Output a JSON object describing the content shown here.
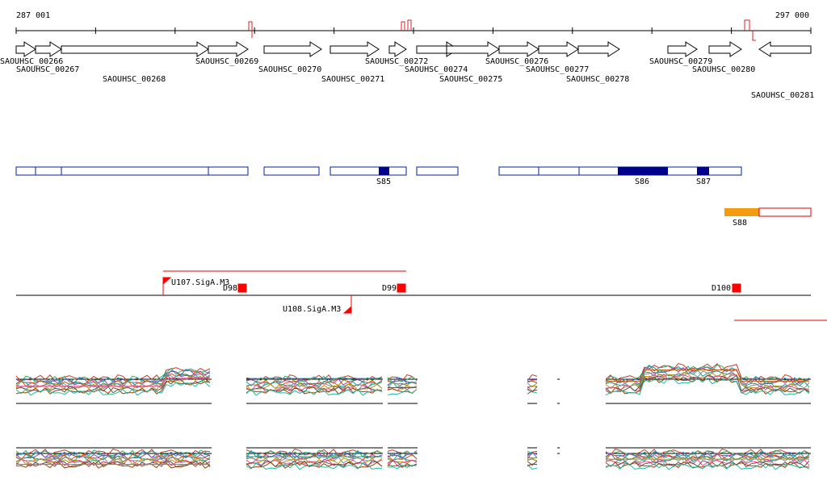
{
  "ruler": {
    "start": "287 001",
    "end": "297 000"
  },
  "genes": [
    "SAOUHSC_00266",
    "SAOUHSC_00267",
    "SAOUHSC_00268",
    "SAOUHSC_00269",
    "SAOUHSC_00270",
    "SAOUHSC_00271",
    "SAOUHSC_00272",
    "SAOUHSC_00274",
    "SAOUHSC_00275",
    "SAOUHSC_00276",
    "SAOUHSC_00277",
    "SAOUHSC_00278",
    "SAOUHSC_00279",
    "SAOUHSC_00280",
    "SAOUHSC_00281"
  ],
  "segments": [
    "S85",
    "S86",
    "S87",
    "S88"
  ],
  "promoters": [
    "U107.SigA.M3",
    "U108.SigA.M3"
  ],
  "terminators": [
    "D98",
    "D99",
    "D100"
  ]
}
